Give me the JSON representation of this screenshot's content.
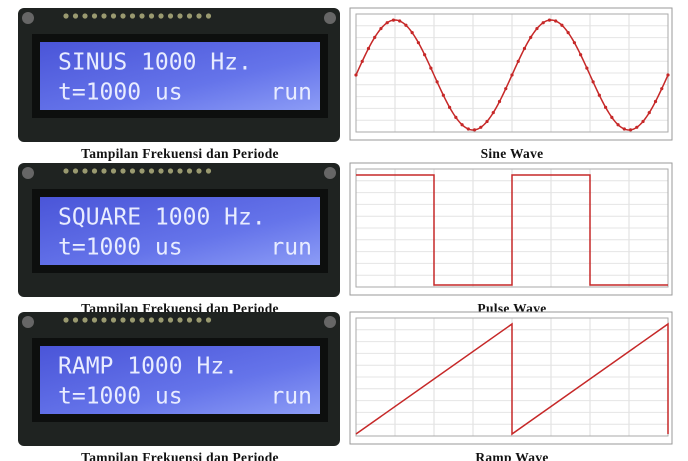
{
  "panels": [
    {
      "lcd": {
        "line1": "SINUS 1000 Hz.",
        "line2_left": "t=1000 us",
        "line2_right": "run"
      },
      "lcd_caption": "Tampilan Frekuensi dan Periode",
      "wave": {
        "shape": "sine",
        "caption": "Sine Wave",
        "color": "#c62828"
      }
    },
    {
      "lcd": {
        "line1": "SQUARE 1000 Hz.",
        "line2_left": "t=1000 us",
        "line2_right": "run"
      },
      "lcd_caption": "Tampilan Frekuensi dan Periode",
      "wave": {
        "shape": "square",
        "caption": "Pulse Wave",
        "color": "#c62828"
      }
    },
    {
      "lcd": {
        "line1": "RAMP 1000 Hz.",
        "line2_left": "t=1000 us",
        "line2_right": "run"
      },
      "lcd_caption": "Tampilan Frekuensi dan Periode",
      "wave": {
        "shape": "ramp",
        "caption": "Ramp Wave",
        "color": "#c62828"
      }
    }
  ]
}
